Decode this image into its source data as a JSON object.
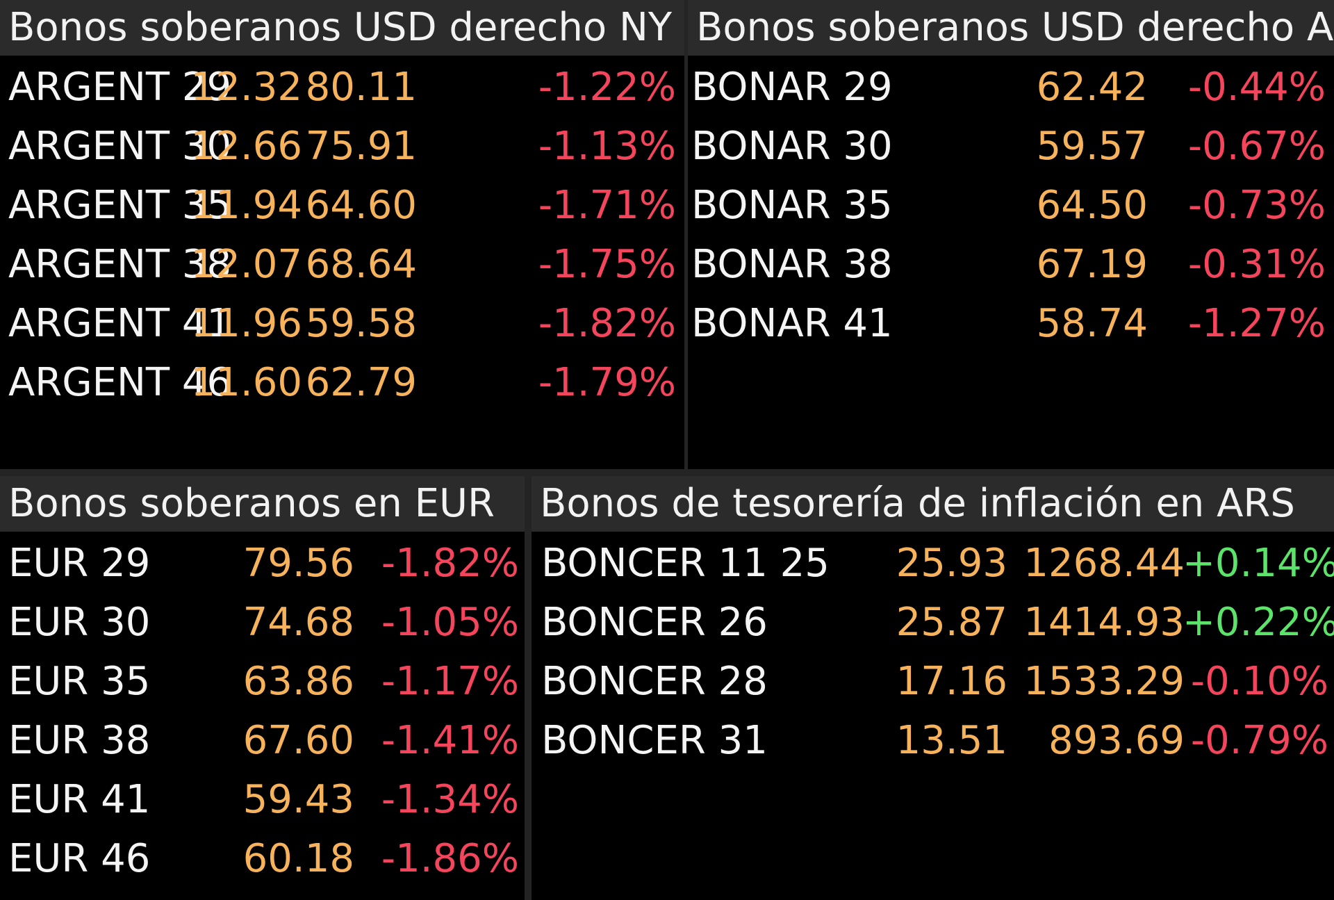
{
  "colors": {
    "background": "#000000",
    "header_bg": "#2b2b2b",
    "name": "#f4f4f4",
    "value": "#f7b25c",
    "negative": "#f5455d",
    "positive": "#5be36a"
  },
  "ny": {
    "title": "Bonos soberanos USD derecho NY",
    "rows": [
      {
        "name": "ARGENT 29",
        "yield": "12.32",
        "price": "80.11",
        "change": "-1.22%"
      },
      {
        "name": "ARGENT 30",
        "yield": "12.66",
        "price": "75.91",
        "change": "-1.13%"
      },
      {
        "name": "ARGENT 35",
        "yield": "11.94",
        "price": "64.60",
        "change": "-1.71%"
      },
      {
        "name": "ARGENT 38",
        "yield": "12.07",
        "price": "68.64",
        "change": "-1.75%"
      },
      {
        "name": "ARGENT 41",
        "yield": "11.96",
        "price": "59.58",
        "change": "-1.82%"
      },
      {
        "name": "ARGENT 46",
        "yield": "11.60",
        "price": "62.79",
        "change": "-1.79%"
      }
    ]
  },
  "ar": {
    "title": "Bonos soberanos USD derecho A",
    "rows": [
      {
        "name": "BONAR 29",
        "price": "62.42",
        "change": "-0.44%"
      },
      {
        "name": "BONAR 30",
        "price": "59.57",
        "change": "-0.67%"
      },
      {
        "name": "BONAR 35",
        "price": "64.50",
        "change": "-0.73%"
      },
      {
        "name": "BONAR 38",
        "price": "67.19",
        "change": "-0.31%"
      },
      {
        "name": "BONAR 41",
        "price": "58.74",
        "change": "-1.27%"
      }
    ]
  },
  "eur": {
    "title": "Bonos soberanos en EUR",
    "rows": [
      {
        "name": "EUR 29",
        "price": "79.56",
        "change": "-1.82%"
      },
      {
        "name": "EUR 30",
        "price": "74.68",
        "change": "-1.05%"
      },
      {
        "name": "EUR 35",
        "price": "63.86",
        "change": "-1.17%"
      },
      {
        "name": "EUR 38",
        "price": "67.60",
        "change": "-1.41%"
      },
      {
        "name": "EUR 41",
        "price": "59.43",
        "change": "-1.34%"
      },
      {
        "name": "EUR 46",
        "price": "60.18",
        "change": "-1.86%"
      }
    ]
  },
  "ars": {
    "title": "Bonos de tesorería de inflación en ARS",
    "rows": [
      {
        "name": "BONCER 11 25",
        "yield": "25.93",
        "price": "1268.44",
        "change": "+0.14%"
      },
      {
        "name": "BONCER 26",
        "yield": "25.87",
        "price": "1414.93",
        "change": "+0.22%"
      },
      {
        "name": "BONCER 28",
        "yield": "17.16",
        "price": "1533.29",
        "change": "-0.10%"
      },
      {
        "name": "BONCER 31",
        "yield": "13.51",
        "price": "893.69",
        "change": "-0.79%"
      }
    ]
  }
}
